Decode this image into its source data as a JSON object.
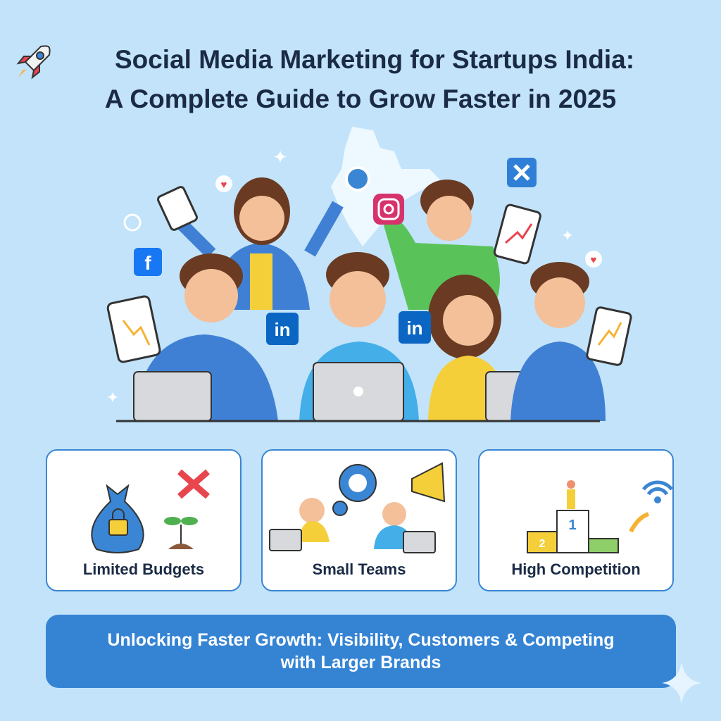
{
  "header": {
    "title_line1": "Social Media Marketing for Startups India:",
    "title_line2": "A Complete Guide to Grow Faster in 2025",
    "icon": "rocket-icon"
  },
  "hero": {
    "social_icons": [
      "facebook-icon",
      "linkedin-icon",
      "instagram-icon",
      "x-icon",
      "heart-icon"
    ],
    "colors": {
      "facebook": "#1877f2",
      "linkedin": "#0a66c2",
      "x": "#2f7fd6",
      "heart": "#e8454f"
    }
  },
  "cards": [
    {
      "label": "Limited Budgets",
      "icon": "money-bag-lock-icon"
    },
    {
      "label": "Small Teams",
      "icon": "team-gear-megaphone-icon"
    },
    {
      "label": "High Competition",
      "icon": "podium-icon"
    }
  ],
  "banner": {
    "text": "Unlocking Faster Growth: Visibility, Customers & Competing with Larger Brands",
    "color": "#3584d4"
  }
}
